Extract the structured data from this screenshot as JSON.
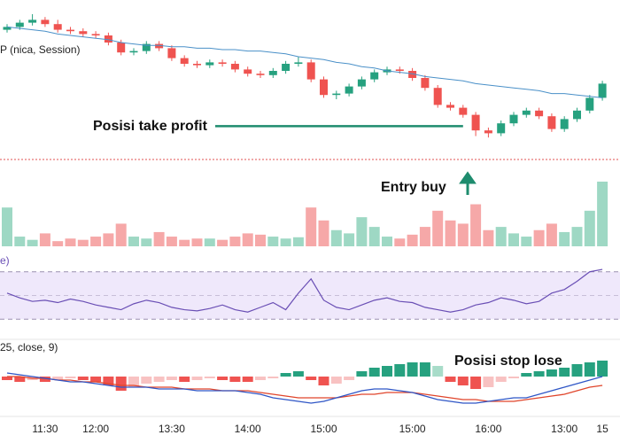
{
  "chart_data": [
    {
      "type": "candlestick",
      "legend": "P (nica, Session)",
      "categories": [
        null,
        null,
        null,
        "11:30",
        null,
        null,
        null,
        "12:00",
        null,
        null,
        null,
        null,
        null,
        "13:30",
        null,
        null,
        null,
        null,
        null,
        "14:00",
        null,
        null,
        null,
        null,
        null,
        "15:00",
        null,
        null,
        null,
        null,
        null,
        null,
        "15:00",
        null,
        null,
        null,
        null,
        null,
        "16:00",
        null,
        null,
        null,
        null,
        null,
        "13:00",
        null,
        null,
        "15"
      ],
      "open": [
        79,
        81,
        84,
        86,
        83,
        79,
        78,
        76,
        75,
        70,
        63,
        64,
        69,
        66,
        59,
        55,
        54,
        56,
        55,
        51,
        48,
        47,
        50,
        55,
        56,
        44,
        33,
        34,
        39,
        44,
        49,
        51,
        50,
        45,
        38,
        26,
        24,
        19,
        8,
        6,
        13,
        19,
        22,
        18,
        9,
        16,
        22,
        31
      ],
      "high": [
        83,
        86,
        90,
        88,
        86,
        81,
        80,
        78,
        77,
        72,
        66,
        71,
        71,
        68,
        61,
        57,
        58,
        58,
        57,
        53,
        50,
        52,
        57,
        60,
        58,
        46,
        36,
        41,
        46,
        51,
        53,
        53,
        52,
        47,
        40,
        28,
        26,
        21,
        10,
        15,
        21,
        24,
        24,
        20,
        18,
        24,
        33,
        43
      ],
      "low": [
        77,
        79,
        82,
        81,
        77,
        76,
        74,
        73,
        68,
        61,
        61,
        62,
        64,
        57,
        53,
        52,
        52,
        53,
        49,
        46,
        45,
        45,
        48,
        53,
        42,
        31,
        30,
        32,
        37,
        42,
        47,
        48,
        43,
        36,
        24,
        22,
        17,
        4,
        3,
        4,
        11,
        17,
        16,
        7,
        7,
        14,
        20,
        29
      ],
      "close": [
        81,
        84,
        86,
        83,
        79,
        78,
        76,
        75,
        70,
        63,
        64,
        69,
        66,
        59,
        55,
        54,
        56,
        55,
        51,
        48,
        47,
        50,
        55,
        56,
        44,
        33,
        34,
        39,
        44,
        49,
        51,
        50,
        45,
        38,
        26,
        24,
        19,
        8,
        6,
        13,
        19,
        22,
        18,
        9,
        16,
        22,
        31,
        41
      ],
      "up_color": "#26a17f",
      "down_color": "#ef5350",
      "ma": {
        "color": "#4a90c8",
        "values": [
          81,
          80,
          79,
          78,
          76,
          75,
          74,
          73,
          72,
          70,
          69,
          68,
          68,
          67,
          67,
          66,
          66,
          65,
          65,
          64,
          64,
          63,
          62,
          60,
          59,
          58,
          56,
          55,
          53,
          52,
          50,
          49,
          48,
          46,
          45,
          44,
          43,
          41,
          40,
          39,
          38,
          37,
          36,
          34,
          34,
          33,
          32,
          31
        ]
      },
      "ylim": [
        0,
        100
      ],
      "take_profit": {
        "text": "Posisi take profit",
        "level": 11,
        "color": "#1e8c6e"
      },
      "entry": {
        "text": "Entry buy"
      }
    },
    {
      "type": "bar",
      "ylim": [
        0,
        100
      ],
      "up_color": "#9ed8c4",
      "down_color": "#f6a8a8",
      "values": [
        60,
        15,
        10,
        20,
        8,
        12,
        10,
        15,
        20,
        35,
        15,
        12,
        22,
        15,
        10,
        12,
        12,
        10,
        15,
        20,
        18,
        15,
        12,
        14,
        60,
        40,
        25,
        20,
        45,
        30,
        15,
        12,
        18,
        30,
        55,
        40,
        35,
        65,
        25,
        30,
        20,
        15,
        25,
        35,
        22,
        30,
        55,
        100
      ]
    },
    {
      "type": "line",
      "legend": "e)",
      "ylim": [
        10,
        90
      ],
      "band": [
        30,
        70
      ],
      "midline": 50,
      "color": "#6a4fb5",
      "band_color": "#efe8fb",
      "values": [
        52,
        48,
        45,
        46,
        44,
        47,
        45,
        42,
        40,
        38,
        43,
        46,
        44,
        40,
        38,
        37,
        39,
        42,
        38,
        36,
        40,
        44,
        38,
        52,
        64,
        46,
        40,
        38,
        42,
        46,
        48,
        45,
        44,
        40,
        38,
        36,
        38,
        42,
        44,
        48,
        46,
        43,
        45,
        52,
        55,
        62,
        70,
        72
      ]
    },
    {
      "type": "macd",
      "legend": "25, close, 9)",
      "ylim": [
        -20,
        20
      ],
      "annotation": "Posisi stop lose",
      "histogram": [
        -2,
        -3,
        -2,
        -3,
        -2,
        -1,
        -2,
        -3,
        -5,
        -8,
        -6,
        -4,
        -3,
        -2,
        -3,
        -2,
        -1,
        -2,
        -3,
        -3,
        -2,
        -1,
        2,
        3,
        -2,
        -5,
        -4,
        -2,
        3,
        5,
        6,
        7,
        8,
        8,
        6,
        -3,
        -5,
        -7,
        -6,
        -3,
        -1,
        2,
        3,
        4,
        5,
        7,
        8,
        9
      ],
      "macd": {
        "color": "#2f56c6",
        "values": [
          2,
          1,
          0,
          -1,
          -2,
          -3,
          -3,
          -4,
          -5,
          -6,
          -6,
          -6,
          -7,
          -7,
          -7,
          -8,
          -8,
          -8,
          -8,
          -9,
          -10,
          -12,
          -13,
          -14,
          -15,
          -14,
          -12,
          -10,
          -8,
          -7,
          -7,
          -8,
          -9,
          -11,
          -13,
          -14,
          -15,
          -15,
          -14,
          -13,
          -12,
          -12,
          -10,
          -8,
          -6,
          -4,
          -2,
          0
        ]
      },
      "signal": {
        "color": "#e0452b",
        "values": [
          0,
          0,
          -1,
          -1,
          -2,
          -2,
          -3,
          -3,
          -4,
          -5,
          -5,
          -6,
          -6,
          -6,
          -7,
          -7,
          -7,
          -8,
          -8,
          -8,
          -9,
          -10,
          -11,
          -12,
          -12,
          -12,
          -12,
          -11,
          -10,
          -10,
          -9,
          -9,
          -9,
          -10,
          -11,
          -12,
          -13,
          -13,
          -14,
          -14,
          -14,
          -13,
          -12,
          -11,
          -10,
          -8,
          -6,
          -5
        ]
      }
    }
  ]
}
